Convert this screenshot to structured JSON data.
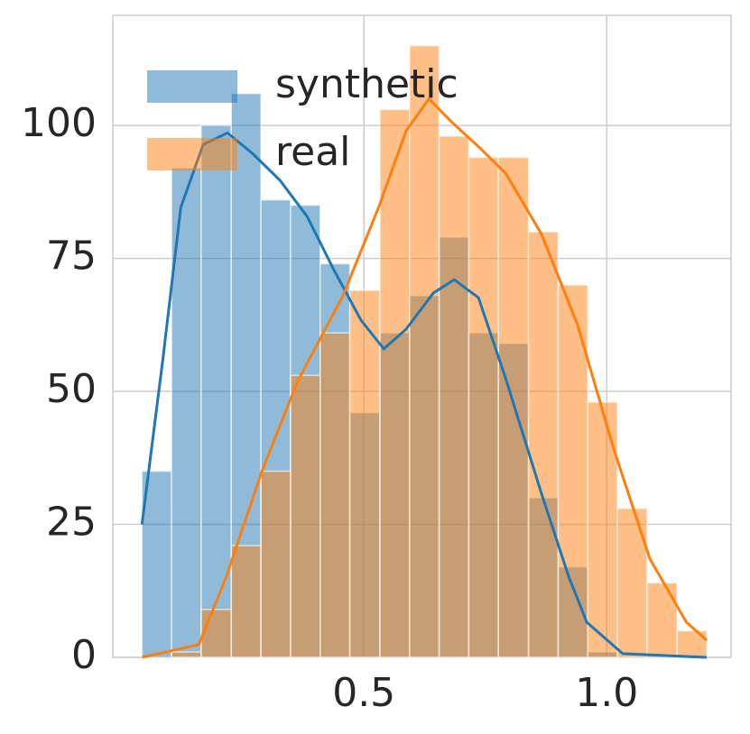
{
  "chart_data": {
    "type": "histogram",
    "bins": [
      0.043,
      0.104,
      0.165,
      0.227,
      0.288,
      0.349,
      0.41,
      0.471,
      0.533,
      0.594,
      0.655,
      0.716,
      0.777,
      0.839,
      0.9,
      0.961,
      1.022,
      1.083,
      1.145,
      1.206
    ],
    "series": [
      {
        "name": "synthetic",
        "color": "#1f77b4",
        "values": [
          35,
          92,
          100,
          106,
          86,
          85,
          74,
          46,
          61,
          68,
          79,
          61,
          59,
          30,
          17,
          1,
          0,
          0,
          0
        ],
        "kde": {
          "x": [
            0.043,
            0.086,
            0.123,
            0.169,
            0.219,
            0.271,
            0.327,
            0.383,
            0.439,
            0.494,
            0.541,
            0.587,
            0.643,
            0.686,
            0.736,
            0.792,
            0.866,
            0.922,
            0.959,
            1.033,
            1.206
          ],
          "values": [
            25,
            56,
            84.6,
            96.4,
            98.6,
            94.7,
            89.7,
            82.9,
            72.7,
            63.4,
            58,
            61.7,
            68.5,
            71,
            67.6,
            52.4,
            30.7,
            15.1,
            6.6,
            0.7,
            0
          ]
        }
      },
      {
        "name": "real",
        "color": "#ff7f0e",
        "values": [
          0,
          1,
          9,
          21,
          35,
          53,
          61,
          69,
          103,
          115,
          98,
          94,
          94,
          80,
          70,
          48,
          28,
          14,
          5
        ],
        "kde": {
          "x": [
            0.043,
            0.16,
            0.216,
            0.29,
            0.364,
            0.457,
            0.532,
            0.587,
            0.634,
            0.68,
            0.736,
            0.792,
            0.866,
            0.94,
            1.015,
            1.089,
            1.164,
            1.206
          ],
          "values": [
            0,
            2.4,
            15,
            35,
            52,
            68,
            85,
            99,
            105,
            100.7,
            96,
            91,
            79.5,
            62.5,
            39,
            18.5,
            6.6,
            3.2
          ]
        }
      }
    ],
    "xlim": [
      -0.017,
      1.256
    ],
    "ylim": [
      0,
      120.7
    ],
    "xticks": [
      0.5,
      {
        "value": 1,
        "label": "1.0"
      }
    ],
    "yticks": [
      0,
      25,
      50,
      75,
      100
    ],
    "grid": true,
    "legend": "upper left"
  }
}
